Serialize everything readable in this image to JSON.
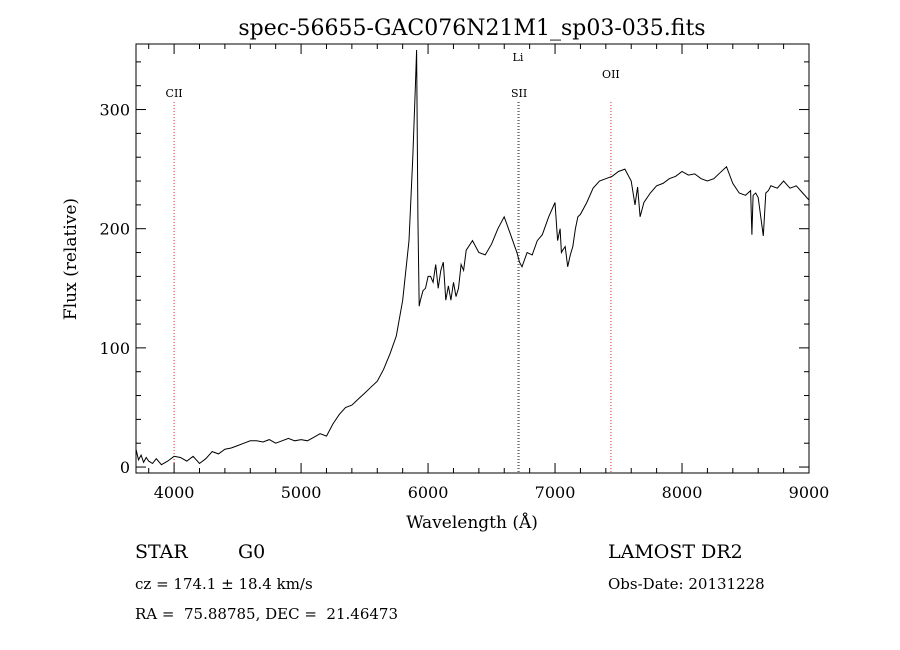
{
  "chart_data": {
    "type": "line",
    "title": "spec-56655-GAC076N21M1_sp03-035.fits",
    "xlabel": "Wavelength (Å)",
    "ylabel": "Flux (relative)",
    "xlim": [
      3700,
      9000
    ],
    "ylim": [
      -5,
      355
    ],
    "x_ticks": [
      4000,
      5000,
      6000,
      7000,
      8000,
      9000
    ],
    "y_ticks": [
      0,
      100,
      200,
      300
    ],
    "grid": false,
    "spectral_lines": [
      {
        "label": "CII",
        "x": 4000
      },
      {
        "label": "Li",
        "x": 6708
      },
      {
        "label": "SII",
        "x": 6717
      },
      {
        "label": "OII",
        "x": 7440
      }
    ],
    "series": [
      {
        "x": [
          3700,
          3720,
          3740,
          3760,
          3780,
          3800,
          3830,
          3860,
          3900,
          3950,
          4000,
          4050,
          4100,
          4150,
          4200,
          4250,
          4300,
          4350,
          4400,
          4450,
          4500,
          4550,
          4600,
          4650,
          4700,
          4750,
          4800,
          4850,
          4900,
          4950,
          5000,
          5050,
          5100,
          5150,
          5200,
          5250,
          5300,
          5350,
          5400,
          5450,
          5500,
          5550,
          5600,
          5650,
          5700,
          5750,
          5800,
          5850,
          5880,
          5900,
          5910,
          5920,
          5925,
          5930,
          5940,
          5960,
          5980,
          6000,
          6020,
          6040,
          6060,
          6080,
          6100,
          6120,
          6140,
          6160,
          6180,
          6200,
          6220,
          6240,
          6260,
          6280,
          6300,
          6350,
          6400,
          6450,
          6500,
          6550,
          6600,
          6650,
          6700,
          6720,
          6740,
          6780,
          6820,
          6860,
          6900,
          6950,
          7000,
          7020,
          7040,
          7050,
          7060,
          7080,
          7100,
          7120,
          7140,
          7160,
          7180,
          7200,
          7250,
          7300,
          7350,
          7400,
          7450,
          7500,
          7550,
          7600,
          7630,
          7650,
          7670,
          7700,
          7750,
          7800,
          7850,
          7900,
          7950,
          8000,
          8050,
          8100,
          8150,
          8200,
          8250,
          8300,
          8350,
          8400,
          8450,
          8500,
          8540,
          8550,
          8560,
          8580,
          8600,
          8640,
          8660,
          8680,
          8700,
          8750,
          8800,
          8850,
          8900,
          8950,
          9000
        ],
        "values": [
          15,
          6,
          10,
          4,
          8,
          5,
          3,
          7,
          2,
          5,
          9,
          8,
          5,
          9,
          3,
          7,
          13,
          11,
          15,
          16,
          18,
          20,
          22,
          22,
          21,
          23,
          20,
          22,
          24,
          22,
          23,
          22,
          25,
          28,
          26,
          36,
          44,
          50,
          52,
          57,
          62,
          67,
          72,
          82,
          95,
          110,
          140,
          190,
          260,
          320,
          350,
          210,
          175,
          135,
          140,
          148,
          150,
          160,
          160,
          155,
          170,
          150,
          165,
          172,
          140,
          152,
          140,
          155,
          143,
          150,
          170,
          165,
          182,
          190,
          180,
          178,
          187,
          200,
          210,
          195,
          180,
          172,
          168,
          180,
          178,
          190,
          195,
          210,
          222,
          190,
          200,
          180,
          182,
          185,
          168,
          178,
          185,
          200,
          210,
          212,
          222,
          234,
          240,
          242,
          244,
          248,
          250,
          240,
          220,
          235,
          210,
          222,
          230,
          236,
          238,
          242,
          244,
          248,
          245,
          246,
          242,
          240,
          242,
          247,
          252,
          238,
          230,
          228,
          232,
          195,
          228,
          230,
          226,
          194,
          230,
          232,
          236,
          234,
          240,
          234,
          236,
          230,
          224
        ]
      }
    ]
  },
  "footer": {
    "object_class": "STAR",
    "subclass": "G0",
    "survey": "LAMOST DR2",
    "velocity": "cz = 174.1 ± 18.4 km/s",
    "obs_date": "Obs-Date: 20131228",
    "coords": "RA =  75.88785, DEC =  21.46473"
  }
}
